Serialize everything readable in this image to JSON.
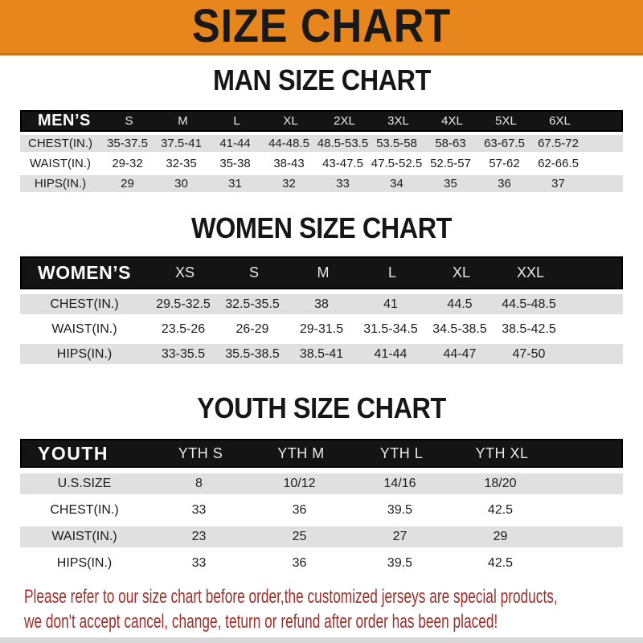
{
  "banner": {
    "title": "SIZE CHART",
    "bg_color": "#E8861E",
    "border_color": "#C9721A"
  },
  "sections": [
    {
      "id": "man",
      "title": "MAN SIZE CHART",
      "table": {
        "label": "MEN’S",
        "columns": [
          "S",
          "M",
          "L",
          "XL",
          "2XL",
          "3XL",
          "4XL",
          "5XL",
          "6XL"
        ],
        "rows": [
          {
            "label": "CHEST(IN.)",
            "values": [
              "35-37.5",
              "37.5-41",
              "41-44",
              "44-48.5",
              "48.5-53.5",
              "53.5-58",
              "58-63",
              "63-67.5",
              "67.5-72"
            ]
          },
          {
            "label": "WAIST(IN.)",
            "values": [
              "29-32",
              "32-35",
              "35-38",
              "38-43",
              "43-47.5",
              "47.5-52.5",
              "52.5-57",
              "57-62",
              "62-66.5"
            ]
          },
          {
            "label": "HIPS(IN.)",
            "values": [
              "29",
              "30",
              "31",
              "32",
              "33",
              "34",
              "35",
              "36",
              "37"
            ]
          }
        ]
      }
    },
    {
      "id": "women",
      "title": "WOMEN SIZE CHART",
      "table": {
        "label": "WOMEN’S",
        "columns": [
          "XS",
          "S",
          "M",
          "L",
          "XL",
          "XXL"
        ],
        "rows": [
          {
            "label": "CHEST(IN.)",
            "values": [
              "29.5-32.5",
              "32.5-35.5",
              "38",
              "41",
              "44.5",
              "44.5-48.5"
            ]
          },
          {
            "label": "WAIST(IN.)",
            "values": [
              "23.5-26",
              "26-29",
              "29-31.5",
              "31.5-34.5",
              "34.5-38.5",
              "38.5-42.5"
            ]
          },
          {
            "label": "HIPS(IN.)",
            "values": [
              "33-35.5",
              "35.5-38.5",
              "38.5-41",
              "41-44",
              "44-47",
              "47-50"
            ]
          }
        ]
      }
    },
    {
      "id": "youth",
      "title": "YOUTH SIZE CHART",
      "table": {
        "label": "YOUTH",
        "columns": [
          "YTH S",
          "YTH M",
          "YTH L",
          "YTH XL"
        ],
        "rows": [
          {
            "label": "U.S.SIZE",
            "values": [
              "8",
              "10/12",
              "14/16",
              "18/20"
            ]
          },
          {
            "label": "CHEST(IN.)",
            "values": [
              "33",
              "36",
              "39.5",
              "42.5"
            ]
          },
          {
            "label": "WAIST(IN.)",
            "values": [
              "23",
              "25",
              "27",
              "29"
            ]
          },
          {
            "label": "HIPS(IN.)",
            "values": [
              "33",
              "36",
              "39.5",
              "42.5"
            ]
          }
        ]
      }
    }
  ],
  "footer": {
    "line1": "Please refer to our size chart before order,the customized jerseys are special products,",
    "line2": "we don't accept cancel, change, teturn or refund after order has been placed!",
    "text_color": "#9E2F2A"
  },
  "colors": {
    "band_bg": "#141414",
    "row_stripe": "#E0E0E0",
    "data_text": "#1d1d1d",
    "bottom_strip": "#D8D8D8"
  }
}
